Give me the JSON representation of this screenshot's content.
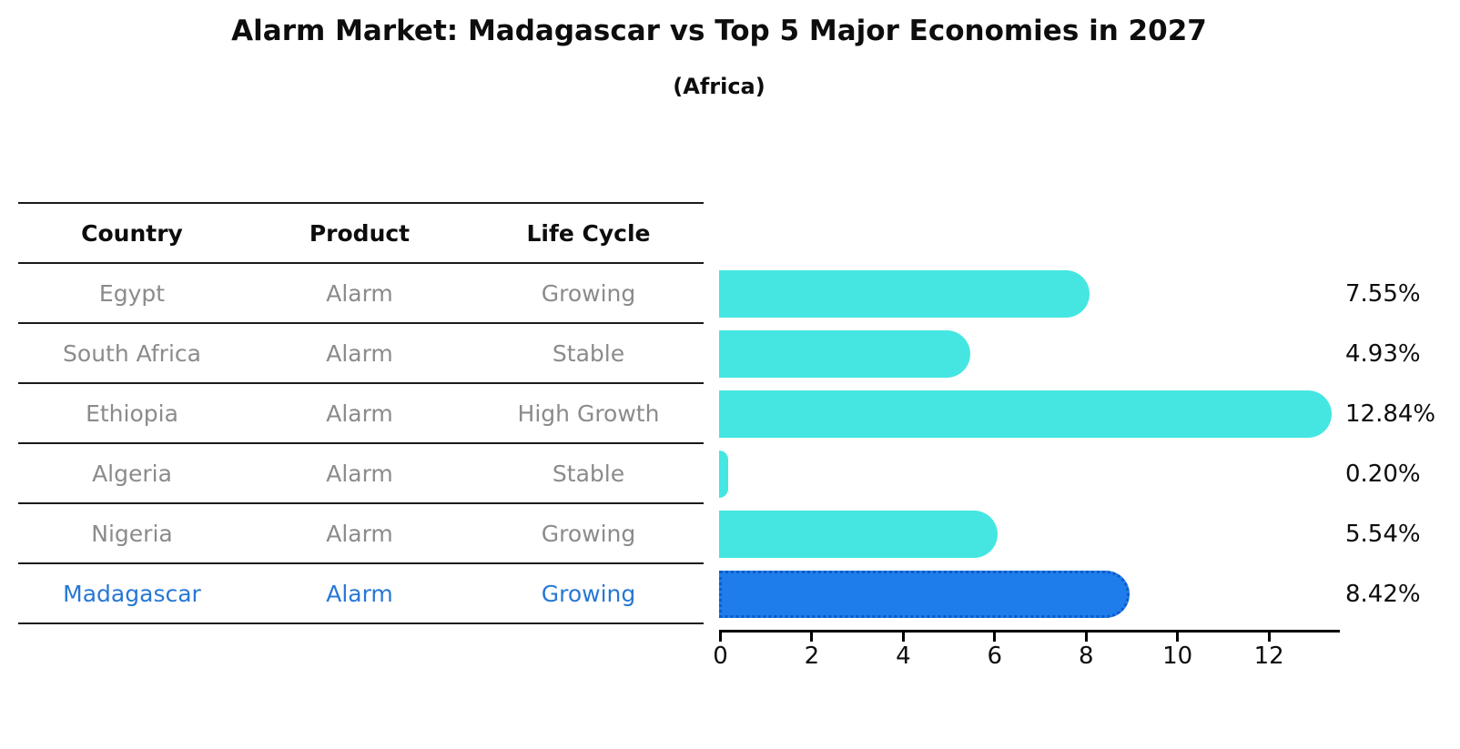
{
  "title": "Alarm Market: Madagascar vs Top 5 Major Economies in 2027",
  "subtitle": "(Africa)",
  "table": {
    "headers": [
      "Country",
      "Product",
      "Life Cycle"
    ],
    "rows": [
      {
        "country": "Egypt",
        "product": "Alarm",
        "life_cycle": "Growing",
        "highlight": false
      },
      {
        "country": "South Africa",
        "product": "Alarm",
        "life_cycle": "Stable",
        "highlight": false
      },
      {
        "country": "Ethiopia",
        "product": "Alarm",
        "life_cycle": "High Growth",
        "highlight": false
      },
      {
        "country": "Algeria",
        "product": "Alarm",
        "life_cycle": "Stable",
        "highlight": false
      },
      {
        "country": "Nigeria",
        "product": "Alarm",
        "life_cycle": "Growing",
        "highlight": false
      },
      {
        "country": "Madagascar",
        "product": "Alarm",
        "life_cycle": "Growing",
        "highlight": true
      }
    ]
  },
  "chart_data": {
    "type": "bar",
    "orientation": "horizontal",
    "title": "Alarm Market: Madagascar vs Top 5 Major Economies in 2027",
    "subtitle": "(Africa)",
    "categories": [
      "Egypt",
      "South Africa",
      "Ethiopia",
      "Algeria",
      "Nigeria",
      "Madagascar"
    ],
    "values": [
      7.55,
      4.93,
      12.84,
      0.2,
      5.54,
      8.42
    ],
    "value_labels": [
      "7.55%",
      "4.93%",
      "12.84%",
      "0.20%",
      "5.54%",
      "8.42%"
    ],
    "highlight_index": 5,
    "x_ticks": [
      0,
      2,
      4,
      6,
      8,
      10,
      12
    ],
    "xlim": [
      0,
      13.54
    ],
    "grid": false,
    "legend": "none",
    "bar_color": "#45e6e1",
    "highlight_bar_color": "#1e7deb",
    "highlight_border_color": "#0b5bc8",
    "highlight_text_color": "#2778d4",
    "row_text_color": "#8b8b8b",
    "axis_color": "#000000"
  }
}
